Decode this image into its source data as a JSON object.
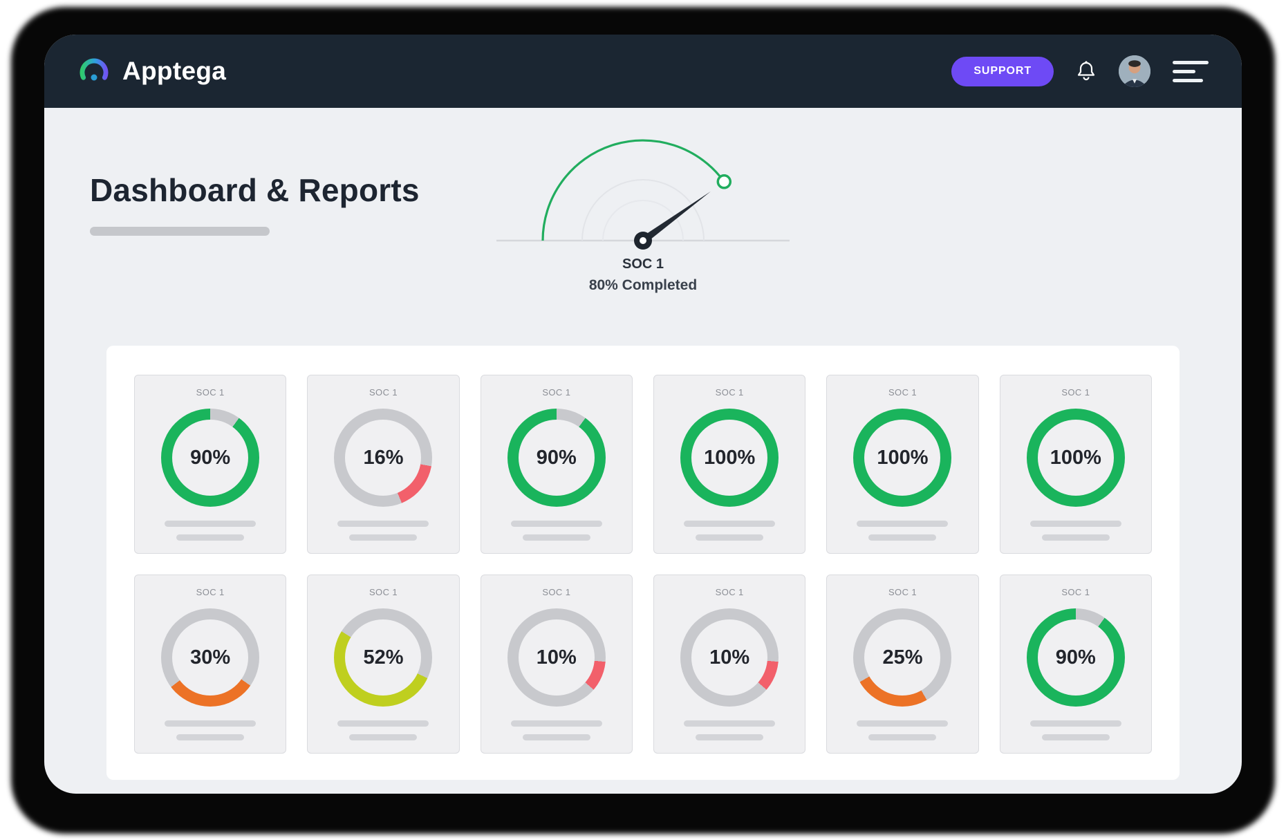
{
  "header": {
    "brand": "Apptega",
    "support_label": "SUPPORT"
  },
  "page": {
    "title": "Dashboard & Reports"
  },
  "gauge": {
    "label": "SOC 1",
    "completed_text": "80% Completed",
    "percent": 80
  },
  "colors": {
    "green": "#1AB45C",
    "red": "#F2606B",
    "orange": "#EC7226",
    "lime": "#BFCF1F",
    "track": "#C8C9CD",
    "accent_purple": "#6E4AF5",
    "header_bg": "#1B2632",
    "gauge_arc": "#21AD5E"
  },
  "cards": [
    {
      "label": "SOC 1",
      "percent": 90,
      "color_key": "green",
      "start_deg": 36
    },
    {
      "label": "SOC 1",
      "percent": 16,
      "color_key": "red",
      "start_deg": 100
    },
    {
      "label": "SOC 1",
      "percent": 90,
      "color_key": "green",
      "start_deg": 36
    },
    {
      "label": "SOC 1",
      "percent": 100,
      "color_key": "green",
      "start_deg": 0
    },
    {
      "label": "SOC 1",
      "percent": 100,
      "color_key": "green",
      "start_deg": 0
    },
    {
      "label": "SOC 1",
      "percent": 100,
      "color_key": "green",
      "start_deg": 0
    },
    {
      "label": "SOC 1",
      "percent": 30,
      "color_key": "orange",
      "start_deg": 125
    },
    {
      "label": "SOC 1",
      "percent": 52,
      "color_key": "lime",
      "start_deg": 115
    },
    {
      "label": "SOC 1",
      "percent": 10,
      "color_key": "red",
      "start_deg": 95
    },
    {
      "label": "SOC 1",
      "percent": 10,
      "color_key": "red",
      "start_deg": 95
    },
    {
      "label": "SOC 1",
      "percent": 25,
      "color_key": "orange",
      "start_deg": 150
    },
    {
      "label": "SOC 1",
      "percent": 90,
      "color_key": "green",
      "start_deg": 36
    }
  ],
  "icons": {
    "logo": "apptega-gauge-logo",
    "bell": "notification-bell",
    "avatar": "user-avatar",
    "menu": "hamburger-menu"
  }
}
